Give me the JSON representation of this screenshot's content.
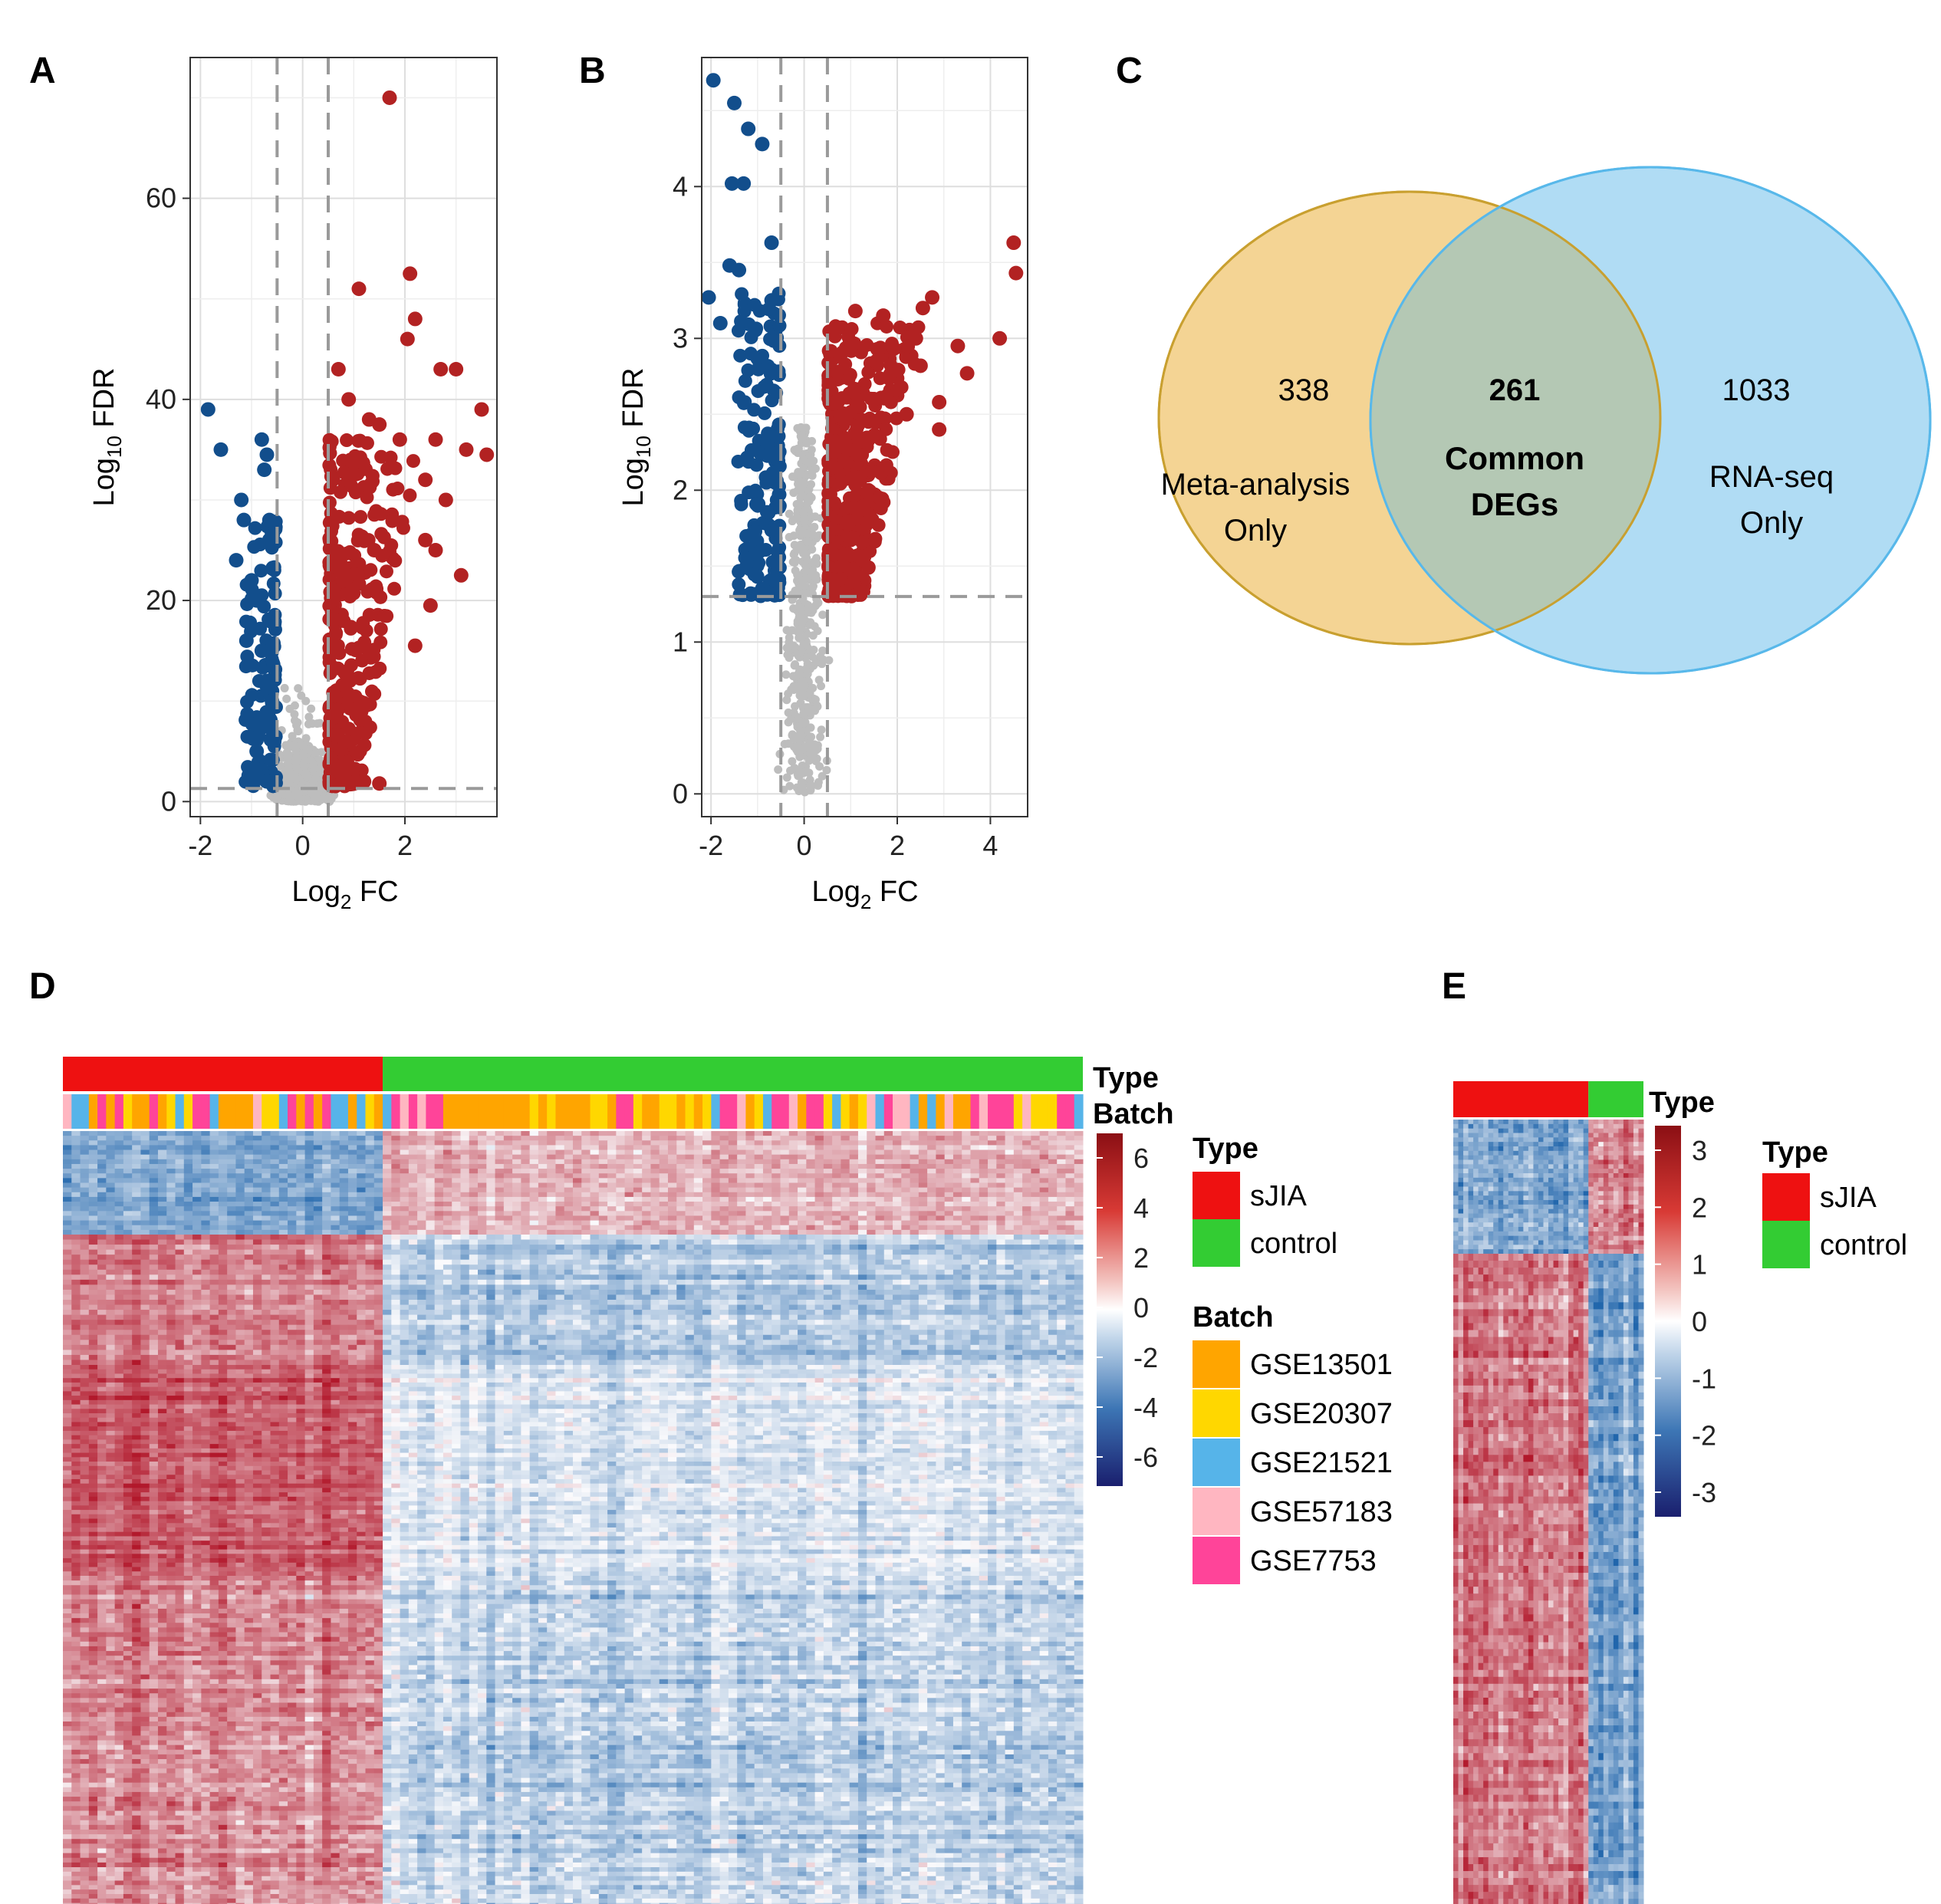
{
  "panels": {
    "A": "A",
    "B": "B",
    "C": "C",
    "D": "D",
    "E": "E"
  },
  "colors": {
    "up": "#b22222",
    "down": "#124e8c",
    "ns": "#bdbdbd",
    "sjia": "#ee1111",
    "control": "#33cc33",
    "GSE13501": "#ffa500",
    "GSE20307": "#ffd700",
    "GSE21521": "#56b4e9",
    "GSE57183": "#ffb6c1",
    "GSE7753": "#ff4499",
    "venn_left": "#f4d494",
    "venn_left_edge": "#e0a030",
    "venn_right": "#b0dcf4",
    "venn_right_edge": "#58b8ea",
    "venn_overlap": "#b4c8b4"
  },
  "chart_data": [
    {
      "type": "scatter",
      "panel": "A",
      "xlabel": "Log2 FC",
      "ylabel": "Log10 FDR",
      "xlim": [
        -2.2,
        3.8
      ],
      "ylim": [
        -1.5,
        74
      ],
      "xticks": [
        -2,
        0,
        2
      ],
      "yticks": [
        0,
        20,
        40,
        60
      ],
      "fc_threshold": 0.5,
      "fdr_threshold": 1.3,
      "series": [
        {
          "name": "down",
          "points": [
            [
              -1.85,
              39
            ],
            [
              -1.6,
              35
            ],
            [
              -1.2,
              30
            ],
            [
              -1.15,
              28
            ],
            [
              -0.8,
              36
            ],
            [
              -0.75,
              33
            ],
            [
              -0.7,
              34.5
            ],
            [
              -0.65,
              28
            ],
            [
              -1.3,
              24
            ],
            [
              -1.0,
              22
            ],
            [
              -0.9,
              20
            ],
            [
              -1.1,
              16
            ],
            [
              -0.8,
              15
            ],
            [
              -0.7,
              12
            ],
            [
              -0.6,
              10
            ],
            [
              -1.05,
              2
            ],
            [
              -0.7,
              2
            ],
            [
              -0.9,
              5
            ]
          ]
        },
        {
          "name": "up",
          "points": [
            [
              1.7,
              70
            ],
            [
              2.1,
              52.5
            ],
            [
              2.2,
              48
            ],
            [
              1.1,
              51
            ],
            [
              2.05,
              46
            ],
            [
              2.7,
              43
            ],
            [
              3.0,
              43
            ],
            [
              3.5,
              39
            ],
            [
              2.6,
              36
            ],
            [
              3.2,
              35
            ],
            [
              3.6,
              34.5
            ],
            [
              2.4,
              32
            ],
            [
              2.8,
              30
            ],
            [
              2.4,
              26
            ],
            [
              2.6,
              25
            ],
            [
              3.1,
              22.5
            ],
            [
              2.5,
              19.5
            ],
            [
              2.2,
              15.5
            ],
            [
              1.4,
              25
            ],
            [
              0.7,
              43
            ],
            [
              0.9,
              40
            ],
            [
              1.3,
              38
            ],
            [
              1.5,
              37.5
            ],
            [
              1.9,
              36
            ],
            [
              1.2,
              2
            ],
            [
              1.5,
              1.8
            ]
          ]
        }
      ],
      "cloud": {
        "up_x": [
          0.5,
          2.3
        ],
        "up_y": [
          1.5,
          36
        ],
        "down_x": [
          -1.1,
          -0.5
        ],
        "down_y": [
          1.5,
          28
        ]
      }
    },
    {
      "type": "scatter",
      "panel": "B",
      "xlabel": "Log2 FC",
      "ylabel": "Log10 FDR",
      "xlim": [
        -2.2,
        4.8
      ],
      "ylim": [
        -0.15,
        4.85
      ],
      "xticks": [
        -2,
        0,
        2,
        4
      ],
      "yticks": [
        0,
        1,
        2,
        3,
        4
      ],
      "fc_threshold": 0.5,
      "fdr_threshold": 1.3,
      "series": [
        {
          "name": "down",
          "points": [
            [
              -1.95,
              4.7
            ],
            [
              -1.5,
              4.55
            ],
            [
              -1.2,
              4.38
            ],
            [
              -0.9,
              4.28
            ],
            [
              -1.55,
              4.02
            ],
            [
              -1.3,
              4.02
            ],
            [
              -0.7,
              3.63
            ],
            [
              -2.05,
              3.27
            ],
            [
              -1.6,
              3.48
            ],
            [
              -1.4,
              3.45
            ],
            [
              -1.8,
              3.1
            ],
            [
              -0.7,
              3.25
            ]
          ]
        },
        {
          "name": "up",
          "points": [
            [
              4.5,
              3.63
            ],
            [
              4.55,
              3.43
            ],
            [
              4.2,
              3.0
            ],
            [
              3.5,
              2.77
            ],
            [
              2.75,
              3.27
            ],
            [
              2.55,
              3.2
            ],
            [
              2.4,
              3.0
            ],
            [
              3.3,
              2.95
            ],
            [
              2.5,
              2.82
            ],
            [
              2.9,
              2.4
            ],
            [
              2.2,
              2.5
            ],
            [
              1.7,
              3.15
            ],
            [
              1.1,
              3.18
            ],
            [
              1.5,
              2.6
            ],
            [
              2.9,
              2.58
            ]
          ]
        }
      ],
      "cloud": {
        "up_x": [
          0.5,
          2.6
        ],
        "up_y": [
          1.3,
          3.1
        ],
        "down_x": [
          -1.4,
          -0.5
        ],
        "down_y": [
          1.3,
          3.3
        ]
      }
    },
    {
      "type": "venn",
      "panel": "C",
      "sets": [
        {
          "label_line1": "Meta-analysis",
          "label_line2": "Only",
          "count": "338"
        },
        {
          "label_line1": "RNA-seq",
          "label_line2": "Only",
          "count": "1033"
        }
      ],
      "overlap": {
        "count": "261",
        "label_line1": "Common",
        "label_line2": "DEGs"
      }
    },
    {
      "type": "heatmap",
      "panel": "D",
      "annotation_labels": {
        "type": "Type",
        "batch": "Batch"
      },
      "groups": [
        {
          "name": "sJIA",
          "fraction": 0.315
        },
        {
          "name": "control",
          "fraction": 0.685
        }
      ],
      "colorbar": {
        "ticks": [
          "6",
          "4",
          "2",
          "0",
          "-2",
          "-4",
          "-6"
        ],
        "range": [
          -6,
          6
        ]
      },
      "legend_type": {
        "title": "Type",
        "items": [
          "sJIA",
          "control"
        ]
      },
      "legend_batch": {
        "title": "Batch",
        "items": [
          "GSE13501",
          "GSE20307",
          "GSE21521",
          "GSE57183",
          "GSE7753"
        ]
      }
    },
    {
      "type": "heatmap",
      "panel": "E",
      "annotation_labels": {
        "type": "Type"
      },
      "groups": [
        {
          "name": "sJIA",
          "fraction": 0.7
        },
        {
          "name": "control",
          "fraction": 0.3
        }
      ],
      "colorbar": {
        "ticks": [
          "3",
          "2",
          "1",
          "0",
          "-1",
          "-2",
          "-3"
        ],
        "range": [
          -3,
          3
        ]
      },
      "legend_type": {
        "title": "Type",
        "items": [
          "sJIA",
          "control"
        ]
      }
    }
  ]
}
